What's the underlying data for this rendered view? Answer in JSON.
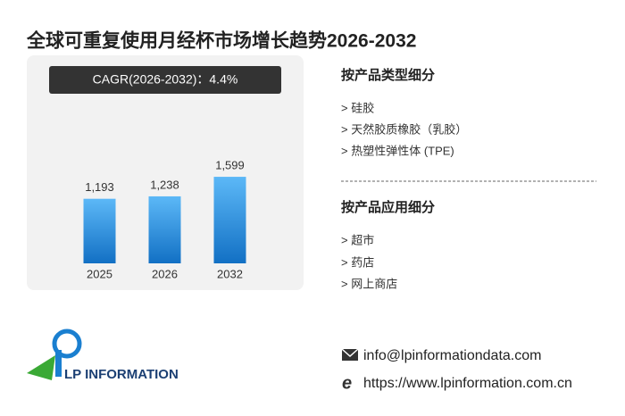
{
  "title": "全球可重复使用月经杯市场增长趋势2026-2032",
  "chart_data": {
    "type": "bar",
    "annotation": "CAGR(2026-2032)：4.4%",
    "categories": [
      "2025",
      "2026",
      "2032"
    ],
    "values": [
      1193,
      1238,
      1599
    ],
    "value_labels": [
      "1,193",
      "1,238",
      "1,599"
    ],
    "ylim": [
      0,
      1600
    ],
    "color": "#1270c4"
  },
  "segments": [
    {
      "title": "按产品类型细分",
      "items": [
        "> 硅胶",
        "> 天然胶质橡胶（乳胶）",
        "> 热塑性弹性体 (TPE)"
      ]
    },
    {
      "title": "按产品应用细分",
      "items": [
        "> 超市",
        "> 药店",
        "> 网上商店"
      ]
    }
  ],
  "logo": "LP INFORMATION",
  "contact": {
    "email": "info@lpinformationdata.com",
    "website": "https://www.lpinformation.com.cn"
  }
}
